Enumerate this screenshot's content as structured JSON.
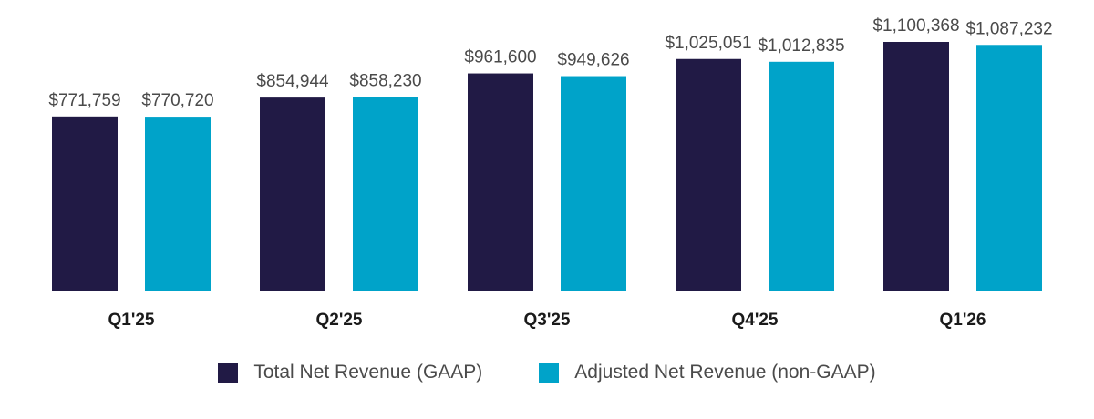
{
  "chart_data": {
    "type": "bar",
    "categories": [
      "Q1'25",
      "Q2'25",
      "Q3'25",
      "Q4'25",
      "Q1'26"
    ],
    "series": [
      {
        "name": "Total Net Revenue (GAAP)",
        "color": "#211A45",
        "values": [
          771759,
          854944,
          961600,
          1025051,
          1100368
        ],
        "labels": [
          "$771,759",
          "$854,944",
          "$961,600",
          "$1,025,051",
          "$1,100,368"
        ]
      },
      {
        "name": "Adjusted Net Revenue (non-GAAP)",
        "color": "#00A3C9",
        "values": [
          770720,
          858230,
          949626,
          1012835,
          1087232
        ],
        "labels": [
          "$770,720",
          "$858,230",
          "$949,626",
          "$1,012,835",
          "$1,087,232"
        ]
      }
    ],
    "title": "",
    "xlabel": "",
    "ylabel": "",
    "ylim": [
      0,
      1100368
    ],
    "grid": false,
    "legend_position": "bottom"
  }
}
